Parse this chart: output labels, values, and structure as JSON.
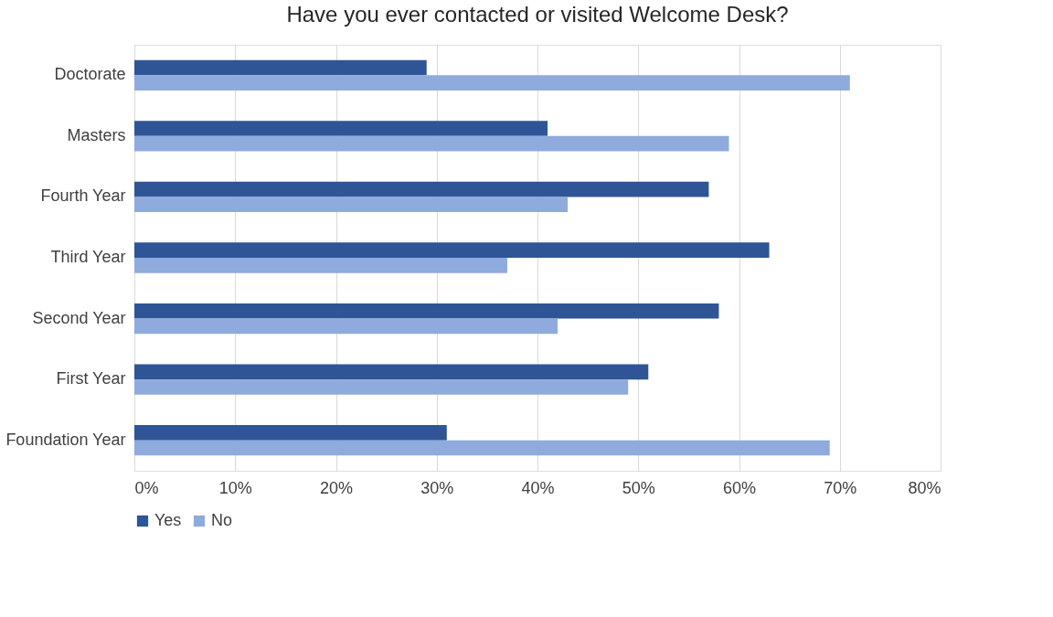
{
  "chart_data": {
    "type": "bar",
    "orientation": "horizontal",
    "title": "Have you ever contacted or visited Welcome Desk?",
    "categories": [
      "Doctorate",
      "Masters",
      "Fourth Year",
      "Third Year",
      "Second Year",
      "First Year",
      "Foundation Year"
    ],
    "series": [
      {
        "name": "Yes",
        "color": "#2f5597",
        "values": [
          29,
          41,
          57,
          63,
          58,
          51,
          31
        ]
      },
      {
        "name": "No",
        "color": "#8faadc",
        "values": [
          71,
          59,
          43,
          37,
          42,
          49,
          69
        ]
      }
    ],
    "xlim": [
      0,
      80
    ],
    "xticks": [
      {
        "value": 0,
        "label": "0%"
      },
      {
        "value": 10,
        "label": "10%"
      },
      {
        "value": 20,
        "label": "20%"
      },
      {
        "value": 30,
        "label": "30%"
      },
      {
        "value": 40,
        "label": "40%"
      },
      {
        "value": 50,
        "label": "50%"
      },
      {
        "value": 60,
        "label": "60%"
      },
      {
        "value": 70,
        "label": "70%"
      },
      {
        "value": 80,
        "label": "80%"
      }
    ],
    "grid": "x",
    "legend": "bottom"
  }
}
